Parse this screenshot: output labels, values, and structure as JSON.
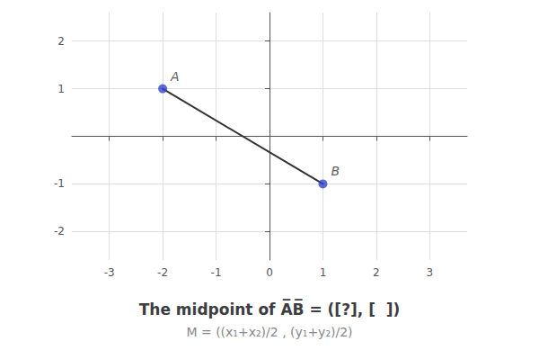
{
  "chart_data": {
    "type": "line",
    "title": "The midpoint of A̅B̅ = ([?], [  ])",
    "subtitle": "M = ((x₁+x₂)/2 , (y₁+y₂)/2)",
    "series": [
      {
        "type": "line",
        "color": "#333333",
        "x": [
          -2,
          1
        ],
        "values": [
          1,
          -1
        ]
      },
      {
        "type": "scatter",
        "color": "#3344cc",
        "x": [
          -2,
          1
        ],
        "values": [
          1,
          -1
        ]
      }
    ],
    "annotations": [
      {
        "text": "A",
        "x": -2,
        "y": 1
      },
      {
        "text": "B",
        "x": 1,
        "y": -1
      }
    ],
    "xlim": [
      -3.7,
      3.7
    ],
    "ylim": [
      -2.6,
      2.6
    ],
    "xticks": [
      -3,
      -2,
      -1,
      0,
      1,
      2,
      3
    ],
    "yticks": [
      -2,
      -1,
      1,
      2
    ],
    "grid": true
  }
}
